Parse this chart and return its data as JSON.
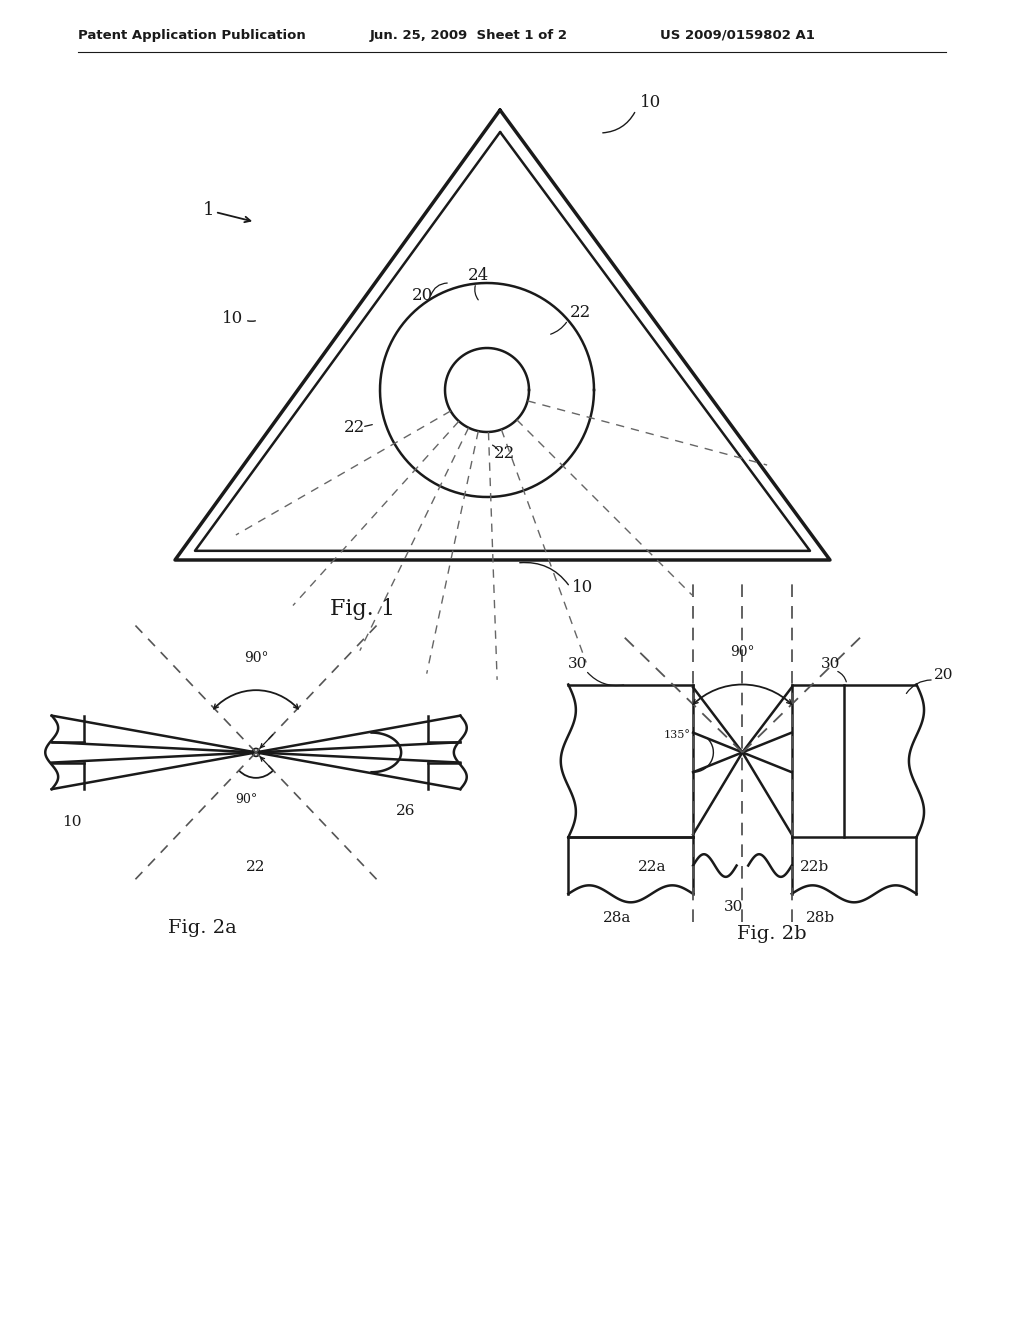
{
  "bg_color": "#ffffff",
  "line_color": "#1a1a1a",
  "dashed_color": "#555555",
  "header_left": "Patent Application Publication",
  "header_mid": "Jun. 25, 2009  Sheet 1 of 2",
  "header_right": "US 2009/0159802 A1",
  "fig1_label": "Fig. 1",
  "fig2a_label": "Fig. 2a",
  "fig2b_label": "Fig. 2b"
}
